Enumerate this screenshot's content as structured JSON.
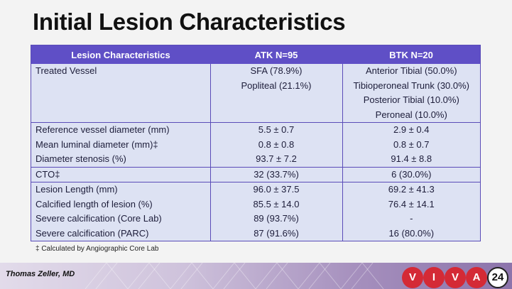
{
  "slide": {
    "title": "Initial Lesion Characteristics"
  },
  "table": {
    "headers": [
      "Lesion Characteristics",
      "ATK N=95",
      "BTK N=20"
    ],
    "vessel_row": {
      "label": "Treated Vessel",
      "atk": [
        "SFA (78.9%)",
        "Popliteal (21.1%)"
      ],
      "btk": [
        "Anterior Tibial (50.0%)",
        "Tibioperoneal Trunk (30.0%)",
        "Posterior Tibial (10.0%)",
        "Peroneal (10.0%)"
      ]
    },
    "rows": [
      {
        "label": "Reference vessel diameter (mm)",
        "atk": "5.5 ± 0.7",
        "btk": "2.9 ± 0.4"
      },
      {
        "label": "Mean luminal diameter (mm)‡",
        "atk": "0.8 ± 0.8",
        "btk": "0.8 ± 0.7"
      },
      {
        "label": "Diameter stenosis (%)",
        "atk": "93.7 ± 7.2",
        "btk": "91.4 ± 8.8"
      },
      {
        "label": "CTO‡",
        "atk": "32 (33.7%)",
        "btk": "6 (30.0%)"
      },
      {
        "label": "Lesion Length (mm)",
        "atk": "96.0 ± 37.5",
        "btk": "69.2 ± 41.3"
      },
      {
        "label": "Calcified length of lesion (%)",
        "atk": "85.5 ± 14.0",
        "btk": "76.4 ± 14.1"
      },
      {
        "label": "Severe calcification (Core Lab)",
        "atk": "89 (93.7%)",
        "btk": "-"
      },
      {
        "label": "Severe calcification (PARC)",
        "atk": "87 (91.6%)",
        "btk": "16 (80.0%)"
      }
    ]
  },
  "footnote": "‡ Calculated by Angiographic Core Lab",
  "presenter": "Thomas Zeller, MD",
  "logo": {
    "letters": [
      "V",
      "I",
      "V",
      "A"
    ],
    "year": "24"
  },
  "colors": {
    "header_bg": "#5f4fc6",
    "row_bg": "#dde2f3",
    "logo_red": "#d42a36"
  }
}
